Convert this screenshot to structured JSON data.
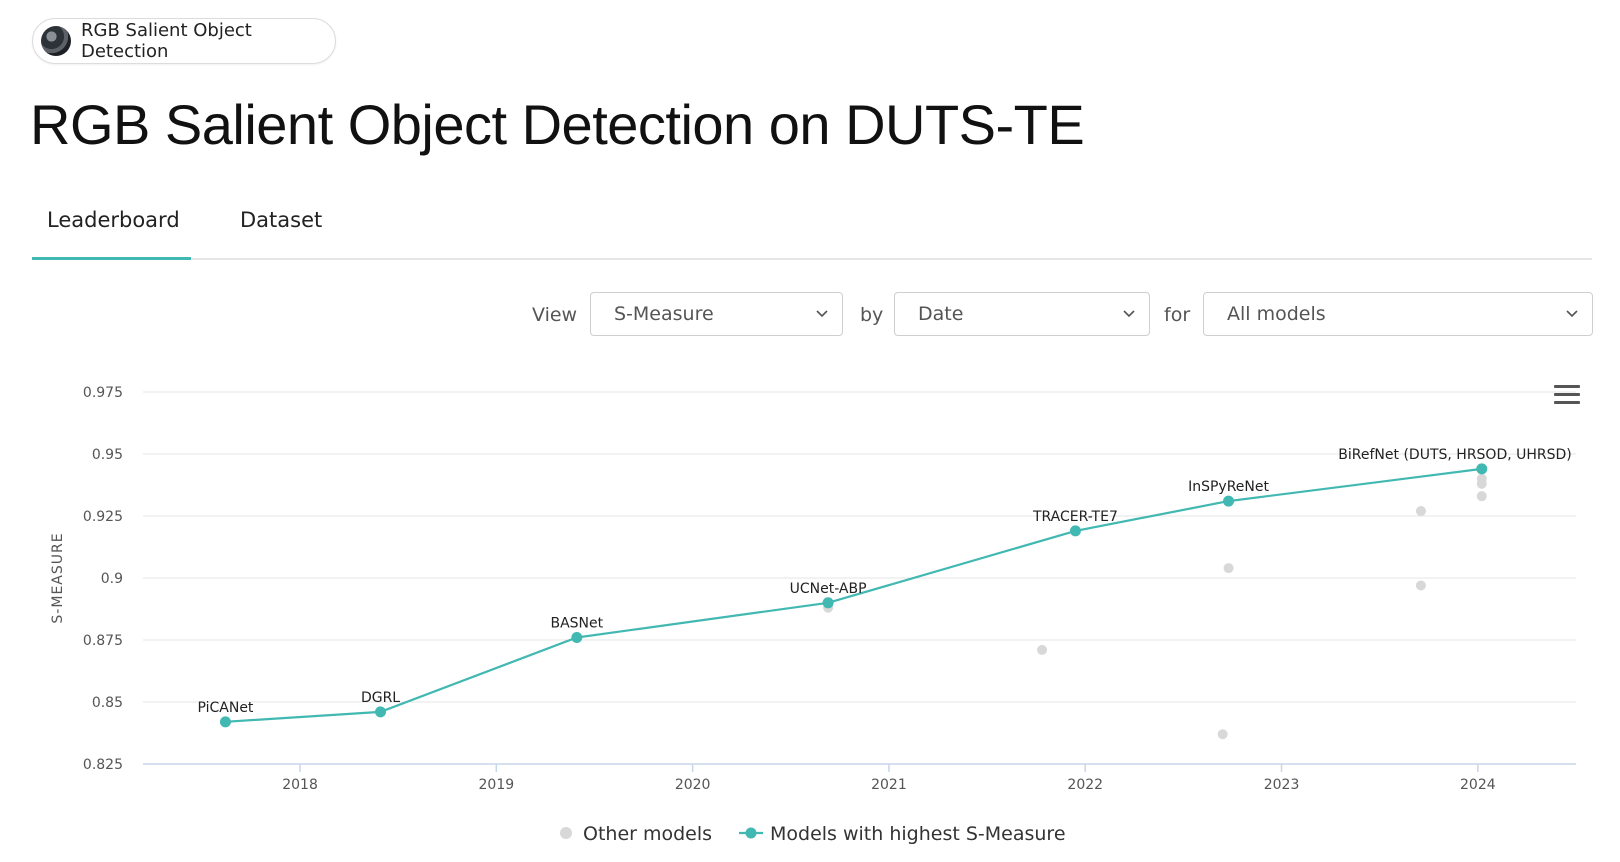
{
  "chip": {
    "label": "RGB Salient Object Detection",
    "icon": "task-thumbnail-icon"
  },
  "page_title": "RGB Salient Object Detection on DUTS-TE",
  "tabs": [
    {
      "label": "Leaderboard",
      "active": true
    },
    {
      "label": "Dataset",
      "active": false
    }
  ],
  "controls": {
    "view_label": "View",
    "view_value": "S-Measure",
    "by_label": "by",
    "by_value": "Date",
    "for_label": "for",
    "for_value": "All models"
  },
  "colors": {
    "accent": "#41b8b1",
    "other": "#d8d8d8",
    "grid": "#e6e6e6",
    "axis": "#c8d6e8"
  },
  "chart_data": {
    "type": "line",
    "ylabel": "S-MEASURE",
    "xlabel": "",
    "ylim": [
      0.825,
      0.975
    ],
    "xlim": [
      2017.2,
      2024.5
    ],
    "yticks": [
      "0.825",
      "0.85",
      "0.875",
      "0.9",
      "0.925",
      "0.95",
      "0.975"
    ],
    "xticks": [
      "2018",
      "2019",
      "2020",
      "2021",
      "2022",
      "2023",
      "2024"
    ],
    "grid": true,
    "legend_position": "bottom",
    "series": [
      {
        "name": "Models with highest S-Measure",
        "points": [
          {
            "x": 2017.62,
            "y": 0.842,
            "label": "PiCANet"
          },
          {
            "x": 2018.41,
            "y": 0.846,
            "label": "DGRL"
          },
          {
            "x": 2019.41,
            "y": 0.876,
            "label": "BASNet"
          },
          {
            "x": 2020.69,
            "y": 0.89,
            "label": "UCNet-ABP"
          },
          {
            "x": 2021.95,
            "y": 0.919,
            "label": "TRACER-TE7"
          },
          {
            "x": 2022.73,
            "y": 0.931,
            "label": "InSPyReNet"
          },
          {
            "x": 2024.02,
            "y": 0.944,
            "label": "BiRefNet (DUTS, HRSOD, UHRSD)"
          }
        ]
      },
      {
        "name": "Other models",
        "points": [
          {
            "x": 2020.69,
            "y": 0.888
          },
          {
            "x": 2021.78,
            "y": 0.871
          },
          {
            "x": 2022.7,
            "y": 0.837
          },
          {
            "x": 2022.73,
            "y": 0.904
          },
          {
            "x": 2023.71,
            "y": 0.927
          },
          {
            "x": 2023.71,
            "y": 0.897
          },
          {
            "x": 2024.02,
            "y": 0.94
          },
          {
            "x": 2024.02,
            "y": 0.938
          },
          {
            "x": 2024.02,
            "y": 0.933
          }
        ]
      }
    ]
  }
}
